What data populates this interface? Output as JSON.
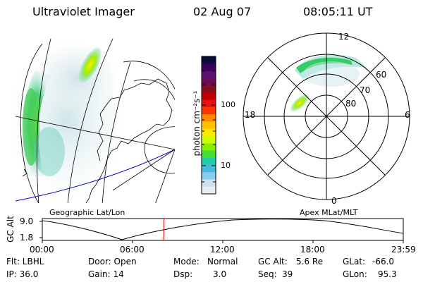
{
  "header": {
    "instrument": "Ultraviolet Imager",
    "date": "02 Aug 07",
    "time": "08:05:11 UT"
  },
  "geo_panel": {
    "caption": "Geographic Lat/Lon"
  },
  "polar_panel": {
    "caption": "Apex MLat/MLT",
    "mlt_labels": {
      "top": "12",
      "left": "18",
      "right": "6",
      "bottom": "0"
    },
    "lat_labels": [
      "60",
      "70",
      "80"
    ]
  },
  "colorbar": {
    "label": "photon cm⁻²s⁻¹",
    "ticks": [
      "100",
      "10"
    ],
    "colors": [
      "#0a0a3c",
      "#3a0060",
      "#5a1070",
      "#6a0c50",
      "#8a0a20",
      "#c00000",
      "#e81010",
      "#ff3300",
      "#ff8800",
      "#ffc000",
      "#ffe800",
      "#ccff00",
      "#88ee00",
      "#44dd33",
      "#22ccaa",
      "#44bbdd",
      "#88ccee",
      "#cce0ee",
      "#e8eef0"
    ]
  },
  "timeline": {
    "axis_title": "GC Alt",
    "y_ticks": [
      "9.0",
      "1.8"
    ],
    "x_ticks": [
      "00:00",
      "06:00",
      "12:00",
      "18:00",
      "23:59"
    ],
    "current_time_hours": 8.08
  },
  "status": {
    "filter": "Flt: LBHL",
    "ip": "IP: 36.0",
    "door": "Door: Open",
    "gain": "Gain: 14",
    "mode_label": "Mode:",
    "mode": "Normal",
    "dsp_label": "Dsp:",
    "dsp": "3.0",
    "gc_alt_label": "GC Alt:",
    "gc_alt": "5.6 Re",
    "seq_label": "Seq:",
    "seq": "39",
    "glat_label": "GLat:",
    "glat": "-66.0",
    "glon_label": "GLon:",
    "glon": "95.3"
  }
}
